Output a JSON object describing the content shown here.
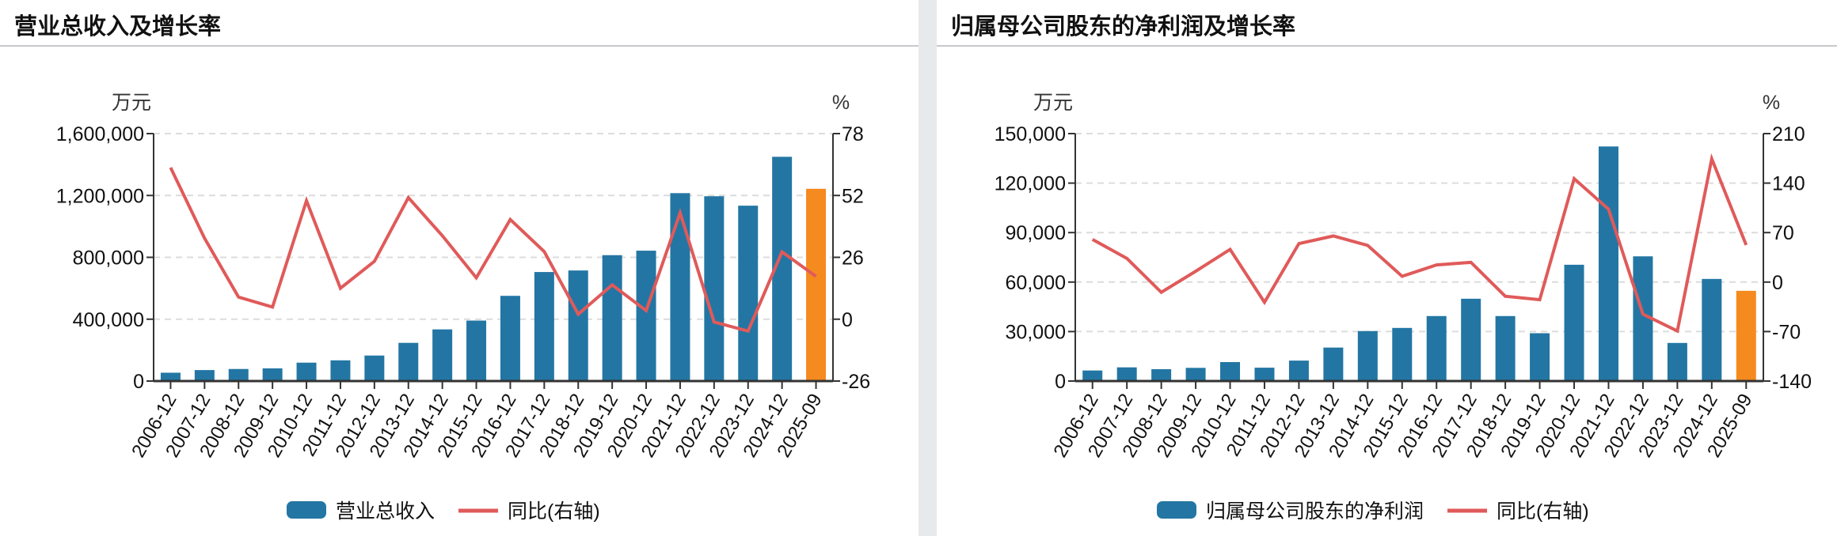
{
  "colors": {
    "bar": "#2376a3",
    "bar_highlight": "#f58a1f",
    "line": "#e05a5a",
    "grid": "#dcdcdc",
    "axis": "#333333"
  },
  "chart_data": [
    {
      "type": "bar+line",
      "title": "营业总收入及增长率",
      "left_unit": "万元",
      "right_unit": "%",
      "categories": [
        "2006-12",
        "2007-12",
        "2008-12",
        "2009-12",
        "2010-12",
        "2011-12",
        "2012-12",
        "2013-12",
        "2014-12",
        "2015-12",
        "2016-12",
        "2017-12",
        "2018-12",
        "2019-12",
        "2020-12",
        "2021-12",
        "2022-12",
        "2023-12",
        "2024-12",
        "2025-09"
      ],
      "left_axis": {
        "range": [
          0,
          1600000
        ],
        "ticks": [
          "0",
          "400,000",
          "800,000",
          "1,200,000",
          "1,600,000"
        ]
      },
      "right_axis": {
        "range": [
          -26,
          78
        ],
        "ticks": [
          "-26",
          "0",
          "26",
          "52",
          "78"
        ]
      },
      "grid": true,
      "legend_position": "bottom",
      "highlight_last": true,
      "series": [
        {
          "name": "营业总收入",
          "kind": "bar",
          "axis": "left",
          "values": [
            54000,
            71000,
            78000,
            82000,
            119000,
            134000,
            165000,
            247000,
            334000,
            391000,
            551000,
            705000,
            715000,
            814000,
            843000,
            1215000,
            1195000,
            1134000,
            1450000,
            1243000
          ]
        },
        {
          "name": "同比(右轴)",
          "kind": "line",
          "axis": "right",
          "values": [
            63.7,
            34.0,
            9.3,
            5.1,
            49.8,
            13.0,
            24.3,
            51.1,
            35.1,
            17.4,
            41.9,
            28.4,
            2.1,
            14.4,
            3.6,
            44.7,
            -1.2,
            -5.0,
            28.3,
            18.0
          ]
        }
      ]
    },
    {
      "type": "bar+line",
      "title": "归属母公司股东的净利润及增长率",
      "left_unit": "万元",
      "right_unit": "%",
      "categories": [
        "2006-12",
        "2007-12",
        "2008-12",
        "2009-12",
        "2010-12",
        "2011-12",
        "2012-12",
        "2013-12",
        "2014-12",
        "2015-12",
        "2016-12",
        "2017-12",
        "2018-12",
        "2019-12",
        "2020-12",
        "2021-12",
        "2022-12",
        "2023-12",
        "2024-12",
        "2025-09"
      ],
      "left_axis": {
        "range": [
          0,
          150000
        ],
        "ticks": [
          "0",
          "30,000",
          "60,000",
          "90,000",
          "120,000",
          "150,000"
        ]
      },
      "right_axis": {
        "range": [
          -140,
          210
        ],
        "ticks": [
          "-140",
          "-70",
          "0",
          "70",
          "140",
          "210"
        ]
      },
      "grid": true,
      "legend_position": "bottom",
      "highlight_last": true,
      "series": [
        {
          "name": "归属母公司股东的净利润",
          "kind": "bar",
          "axis": "left",
          "values": [
            6400,
            8300,
            7200,
            8000,
            11500,
            8100,
            12400,
            20300,
            30300,
            32200,
            39400,
            49900,
            39400,
            29000,
            70500,
            142200,
            75600,
            23100,
            61900,
            54700
          ]
        },
        {
          "name": "同比(右轴)",
          "kind": "line",
          "axis": "right",
          "values": [
            60.3,
            33.5,
            -14.5,
            15.3,
            46.2,
            -28.6,
            54.4,
            65.2,
            51.8,
            8.2,
            24.2,
            27.9,
            -20.1,
            -24.9,
            146.3,
            103.1,
            -45.4,
            -69.2,
            174.3,
            52.5
          ]
        }
      ]
    }
  ]
}
